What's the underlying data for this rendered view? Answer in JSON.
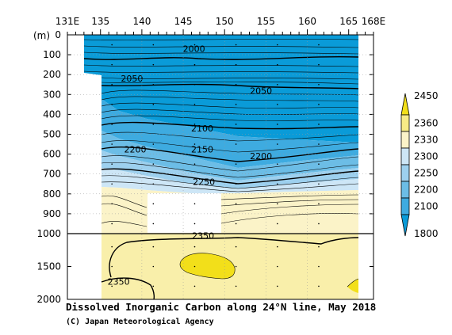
{
  "chart_data": {
    "type": "heatmap",
    "title": "Dissolved Inorganic Carbon along 24°N line, May 2018",
    "credit": "(C) Japan Meteorological Agency",
    "xlabel": "",
    "ylabel": "(m)",
    "x_range": [
      131,
      168
    ],
    "x_ticks": [
      {
        "value": 131,
        "label": "131E"
      },
      {
        "value": 135,
        "label": "135"
      },
      {
        "value": 140,
        "label": "140"
      },
      {
        "value": 145,
        "label": "145"
      },
      {
        "value": 150,
        "label": "150"
      },
      {
        "value": 155,
        "label": "155"
      },
      {
        "value": 160,
        "label": "160"
      },
      {
        "value": 165,
        "label": "165"
      },
      {
        "value": 168,
        "label": "168E"
      }
    ],
    "y_upper_ticks": [
      {
        "value": 0,
        "label": "0"
      },
      {
        "value": 100,
        "label": "100"
      },
      {
        "value": 200,
        "label": "200"
      },
      {
        "value": 300,
        "label": "300"
      },
      {
        "value": 400,
        "label": "400"
      },
      {
        "value": 500,
        "label": "500"
      },
      {
        "value": 600,
        "label": "600"
      },
      {
        "value": 700,
        "label": "700"
      },
      {
        "value": 800,
        "label": "800"
      },
      {
        "value": 900,
        "label": "900"
      },
      {
        "value": 1000,
        "label": "1000"
      }
    ],
    "y_lower_ticks": [
      {
        "value": 1500,
        "label": "1500"
      },
      {
        "value": 2000,
        "label": "2000"
      }
    ],
    "colorbar": {
      "levels": [
        1800,
        2100,
        2200,
        2250,
        2300,
        2330,
        2360,
        2450
      ],
      "labels": [
        "1800",
        "2100",
        "2200",
        "2250",
        "2300",
        "2330",
        "2360",
        "2450"
      ],
      "colors": [
        "#0a9bd8",
        "#3eabe0",
        "#6cbde6",
        "#9dd0ee",
        "#cde6f6",
        "#fbf3c8",
        "#f7eb86",
        "#f2df1a"
      ]
    },
    "contour_labels": [
      {
        "text": "2000",
        "lon": 146.3,
        "depth": 70
      },
      {
        "text": "2050",
        "lon": 138.8,
        "depth": 220
      },
      {
        "text": "2050",
        "lon": 154.4,
        "depth": 280
      },
      {
        "text": "2100",
        "lon": 147.3,
        "depth": 470
      },
      {
        "text": "2150",
        "lon": 147.3,
        "depth": 575
      },
      {
        "text": "2200",
        "lon": 139.2,
        "depth": 575
      },
      {
        "text": "2200",
        "lon": 154.4,
        "depth": 610
      },
      {
        "text": "2250",
        "lon": 147.5,
        "depth": 740
      },
      {
        "text": "2350",
        "lon": 147.4,
        "depth": 1030
      },
      {
        "text": "2350",
        "lon": 137.2,
        "depth": 1730
      }
    ]
  }
}
